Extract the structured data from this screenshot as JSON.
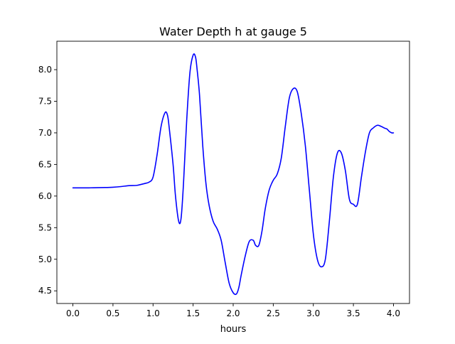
{
  "chart_data": {
    "type": "line",
    "title": "Water Depth h at gauge 5",
    "xlabel": "hours",
    "ylabel": "",
    "xlim": [
      -0.2,
      4.2
    ],
    "ylim": [
      4.3,
      8.45
    ],
    "xticks": [
      0.0,
      0.5,
      1.0,
      1.5,
      2.0,
      2.5,
      3.0,
      3.5,
      4.0
    ],
    "xtick_labels": [
      "0.0",
      "0.5",
      "1.0",
      "1.5",
      "2.0",
      "2.5",
      "3.0",
      "3.5",
      "4.0"
    ],
    "yticks": [
      4.5,
      5.0,
      5.5,
      6.0,
      6.5,
      7.0,
      7.5,
      8.0
    ],
    "ytick_labels": [
      "4.5",
      "5.0",
      "5.5",
      "6.0",
      "6.5",
      "7.0",
      "7.5",
      "8.0"
    ],
    "grid": false,
    "legend": "none",
    "series": [
      {
        "color": "#0000ff",
        "x": [
          0.0,
          0.2,
          0.4,
          0.5,
          0.6,
          0.7,
          0.8,
          0.9,
          0.95,
          1.0,
          1.05,
          1.1,
          1.15,
          1.18,
          1.2,
          1.25,
          1.28,
          1.32,
          1.35,
          1.38,
          1.42,
          1.46,
          1.5,
          1.53,
          1.55,
          1.58,
          1.62,
          1.66,
          1.7,
          1.75,
          1.8,
          1.85,
          1.9,
          1.95,
          2.0,
          2.04,
          2.07,
          2.1,
          2.15,
          2.2,
          2.25,
          2.28,
          2.32,
          2.36,
          2.4,
          2.45,
          2.5,
          2.55,
          2.6,
          2.65,
          2.7,
          2.75,
          2.8,
          2.85,
          2.9,
          2.95,
          3.0,
          3.05,
          3.1,
          3.15,
          3.2,
          3.25,
          3.3,
          3.35,
          3.4,
          3.45,
          3.5,
          3.55,
          3.6,
          3.65,
          3.7,
          3.75,
          3.8,
          3.85,
          3.88,
          3.9,
          3.92,
          3.95,
          3.98,
          4.0
        ],
        "y": [
          6.13,
          6.13,
          6.135,
          6.14,
          6.15,
          6.165,
          6.17,
          6.2,
          6.22,
          6.3,
          6.65,
          7.1,
          7.32,
          7.28,
          7.1,
          6.5,
          6.0,
          5.6,
          5.65,
          6.2,
          7.2,
          7.95,
          8.23,
          8.2,
          8.0,
          7.6,
          6.8,
          6.2,
          5.85,
          5.6,
          5.48,
          5.3,
          4.95,
          4.62,
          4.47,
          4.45,
          4.55,
          4.75,
          5.05,
          5.28,
          5.3,
          5.22,
          5.22,
          5.45,
          5.8,
          6.1,
          6.25,
          6.35,
          6.6,
          7.1,
          7.55,
          7.7,
          7.65,
          7.3,
          6.8,
          6.1,
          5.4,
          5.0,
          4.88,
          5.0,
          5.6,
          6.3,
          6.68,
          6.68,
          6.4,
          5.95,
          5.87,
          5.87,
          6.3,
          6.7,
          7.0,
          7.08,
          7.12,
          7.1,
          7.08,
          7.07,
          7.06,
          7.02,
          7.0,
          7.0
        ]
      }
    ]
  }
}
